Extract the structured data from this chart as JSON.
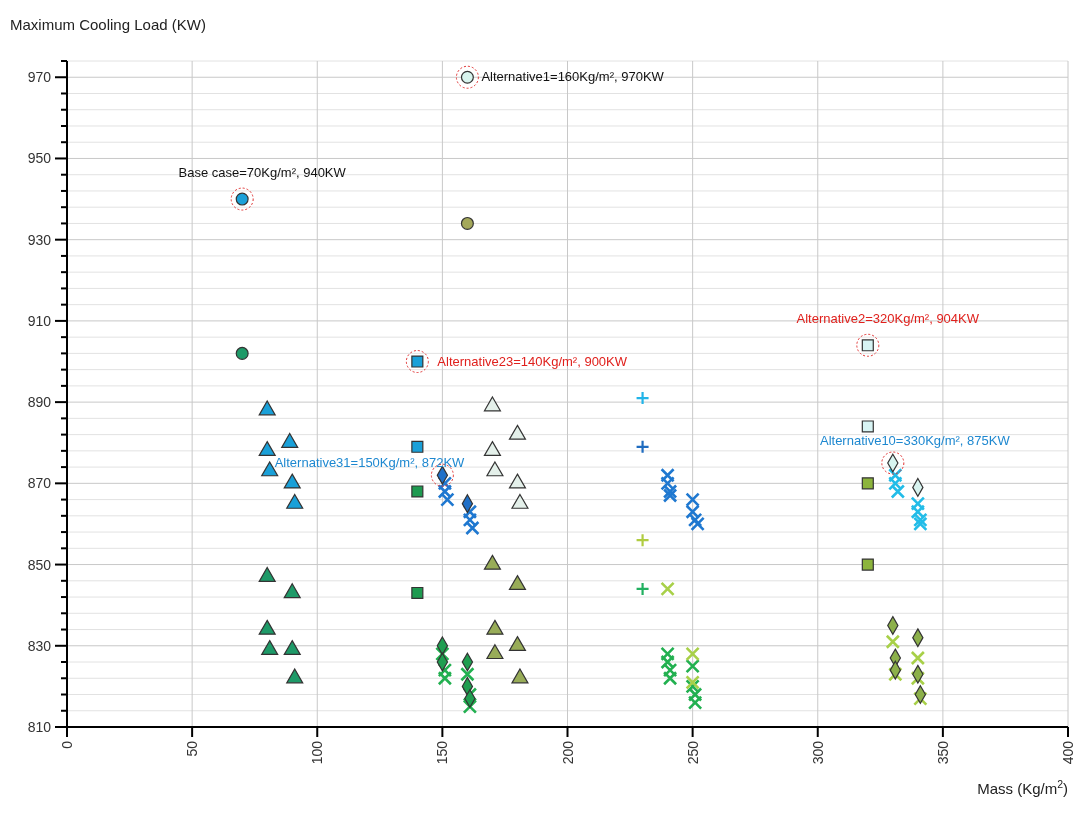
{
  "chart_data": {
    "type": "scatter",
    "xlabel": "Mass (Kg/m$^{2}$)",
    "ylabel": "Maximum Cooling Load (KW)",
    "xlim": [
      0,
      400
    ],
    "xticks": [
      0,
      50,
      100,
      150,
      200,
      250,
      300,
      350,
      400
    ],
    "ylim": [
      810,
      974
    ],
    "yticks": [
      810,
      {
        "value": 814,
        "label": null
      },
      {
        "value": 818,
        "label": null
      },
      {
        "value": 822,
        "label": null
      },
      {
        "value": 826,
        "label": null
      },
      830,
      {
        "value": 834,
        "label": null
      },
      {
        "value": 838,
        "label": null
      },
      {
        "value": 842,
        "label": null
      },
      {
        "value": 846,
        "label": null
      },
      850,
      {
        "value": 854,
        "label": null
      },
      {
        "value": 858,
        "label": null
      },
      {
        "value": 862,
        "label": null
      },
      {
        "value": 866,
        "label": null
      },
      870,
      {
        "value": 874,
        "label": null
      },
      {
        "value": 878,
        "label": null
      },
      {
        "value": 882,
        "label": null
      },
      {
        "value": 886,
        "label": null
      },
      890,
      {
        "value": 894,
        "label": null
      },
      {
        "value": 898,
        "label": null
      },
      {
        "value": 902,
        "label": null
      },
      {
        "value": 906,
        "label": null
      },
      910,
      {
        "value": 914,
        "label": null
      },
      {
        "value": 918,
        "label": null
      },
      {
        "value": 922,
        "label": null
      },
      {
        "value": 926,
        "label": null
      },
      930,
      {
        "value": 934,
        "label": null
      },
      {
        "value": 938,
        "label": null
      },
      {
        "value": 942,
        "label": null
      },
      {
        "value": 946,
        "label": null
      },
      950,
      {
        "value": 954,
        "label": null
      },
      {
        "value": 958,
        "label": null
      },
      {
        "value": 962,
        "label": null
      },
      {
        "value": 966,
        "label": null
      },
      970,
      {
        "value": 974,
        "label": null
      }
    ],
    "grid": true,
    "series": [
      {
        "color": "#1aa0d8",
        "marker": "circle",
        "x": [
          70
        ],
        "values": [
          940
        ]
      },
      {
        "color": "#d8f4ee",
        "marker": "circle",
        "x": [
          160
        ],
        "values": [
          970
        ]
      },
      {
        "color": "#a4a85a",
        "marker": "circle",
        "x": [
          160
        ],
        "values": [
          934
        ]
      },
      {
        "color": "#1e9a68",
        "marker": "circle",
        "x": [
          70
        ],
        "values": [
          902
        ]
      },
      {
        "color": "#1aa0d8",
        "marker": "square",
        "x": [
          140,
          140
        ],
        "values": [
          900,
          879
        ]
      },
      {
        "color": "#1e9a50",
        "marker": "square",
        "x": [
          140,
          140
        ],
        "values": [
          868,
          843
        ]
      },
      {
        "color": "#d8f4f4",
        "marker": "square",
        "x": [
          320,
          320
        ],
        "values": [
          904,
          884
        ]
      },
      {
        "color": "#8cb43c",
        "marker": "square",
        "x": [
          320,
          320
        ],
        "values": [
          870,
          850
        ]
      },
      {
        "color": "#1aa0d8",
        "marker": "triangle",
        "x": [
          80,
          80,
          81,
          89,
          90,
          91
        ],
        "values": [
          888,
          878,
          873,
          880,
          870,
          865
        ]
      },
      {
        "color": "#1e9a68",
        "marker": "triangle",
        "x": [
          80,
          90,
          80,
          81,
          90,
          91
        ],
        "values": [
          847,
          843,
          834,
          829,
          829,
          822
        ]
      },
      {
        "color": "#e4f0ea",
        "marker": "triangle",
        "x": [
          170,
          180,
          170,
          171,
          180,
          181
        ],
        "values": [
          889,
          882,
          878,
          873,
          870,
          865
        ]
      },
      {
        "color": "#98ac58",
        "marker": "triangle",
        "x": [
          170,
          180,
          171,
          171,
          180,
          181
        ],
        "values": [
          850,
          845,
          834,
          828,
          830,
          822
        ]
      },
      {
        "color": "#22b4e8",
        "marker": "cross",
        "x": [
          230
        ],
        "values": [
          891
        ]
      },
      {
        "color": "#1f6cc0",
        "marker": "cross",
        "x": [
          230
        ],
        "values": [
          879
        ]
      },
      {
        "color": "#b0cc40",
        "marker": "cross",
        "x": [
          230
        ],
        "values": [
          856
        ]
      },
      {
        "color": "#22b060",
        "marker": "cross",
        "x": [
          230
        ],
        "values": [
          844
        ]
      },
      {
        "color": "#1f70c8",
        "marker": "diamond",
        "x": [
          150,
          160
        ],
        "values": [
          872,
          865
        ]
      },
      {
        "color": "#1f9e50",
        "marker": "diamond",
        "x": [
          150,
          150,
          160,
          160,
          161
        ],
        "values": [
          830,
          826,
          826,
          820,
          817
        ]
      },
      {
        "color": "#d8f4f0",
        "marker": "diamond",
        "x": [
          330,
          340
        ],
        "values": [
          875,
          869
        ]
      },
      {
        "color": "#8cb04a",
        "marker": "diamond",
        "x": [
          330,
          340,
          331,
          331,
          340,
          341
        ],
        "values": [
          835,
          832,
          827,
          824,
          823,
          818
        ]
      },
      {
        "color": "#1f78d0",
        "marker": "x",
        "x": [
          151,
          151,
          152,
          161,
          161,
          162,
          240,
          240,
          241,
          241,
          250,
          250,
          251,
          252
        ],
        "values": [
          870,
          868,
          866,
          863,
          861,
          859,
          872,
          870,
          868,
          867,
          866,
          863,
          861,
          860
        ]
      },
      {
        "color": "#22b050",
        "marker": "x",
        "x": [
          150,
          151,
          151,
          160,
          161,
          161,
          240,
          240,
          241,
          241,
          250,
          250,
          251,
          251
        ],
        "values": [
          828,
          824,
          822,
          823,
          818,
          815,
          828,
          826,
          824,
          822,
          825,
          820,
          818,
          816
        ]
      },
      {
        "color": "#22bce8",
        "marker": "x",
        "x": [
          331,
          331,
          332,
          340,
          340,
          341,
          341
        ],
        "values": [
          872,
          870,
          868,
          865,
          863,
          861,
          860
        ]
      },
      {
        "color": "#a8d048",
        "marker": "x",
        "x": [
          240,
          250,
          250,
          330,
          340,
          331,
          340,
          341
        ],
        "values": [
          844,
          828,
          821,
          831,
          827,
          823,
          822,
          817
        ]
      }
    ],
    "annotations": [
      {
        "text": "Base case=70Kg/m², 940KW",
        "x": 70,
        "y": 940
      },
      {
        "text": "Alternative1=160Kg/m², 970KW",
        "x": 160,
        "y": 970
      },
      {
        "text": "Alternative23=140Kg/m², 900KW",
        "x": 140,
        "y": 900
      },
      {
        "text": "Alternative2=320Kg/m², 904KW",
        "x": 320,
        "y": 904
      },
      {
        "text": "Alternative10=330Kg/m², 875KW",
        "x": 330,
        "y": 875
      },
      {
        "text": "Alternative31=150Kg/m², 872KW",
        "x": 150,
        "y": 872
      }
    ]
  }
}
